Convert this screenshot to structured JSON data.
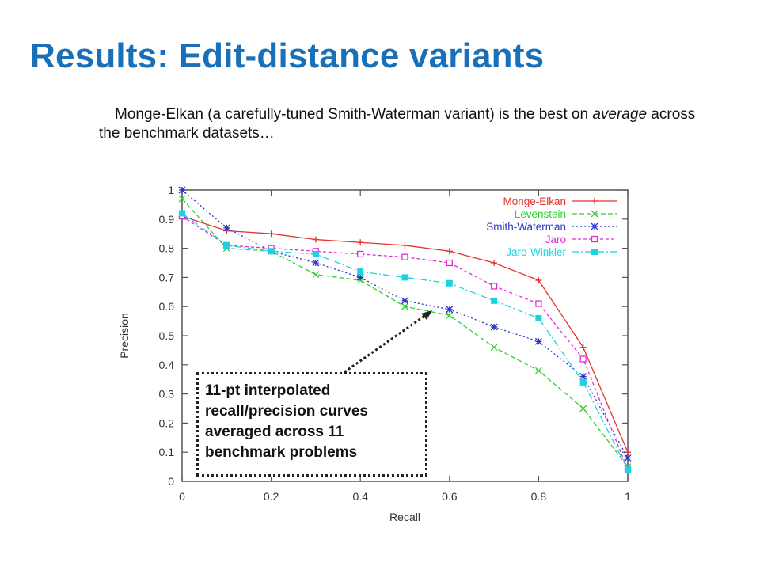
{
  "slide": {
    "title": "Results: Edit-distance variants",
    "subtitle_part1": "Monge-Elkan (a carefully-tuned Smith-Waterman variant) is the best on ",
    "subtitle_emph": "average",
    "subtitle_part2": " across the benchmark datasets…",
    "callout": "11-pt interpolated recall/precision curves averaged across 11 benchmark problems"
  },
  "chart_data": {
    "type": "line",
    "xlabel": "Recall",
    "ylabel": "Precision",
    "xlim": [
      0,
      1
    ],
    "ylim": [
      0,
      1
    ],
    "xticks": [
      "0",
      "0.2",
      "0.4",
      "0.6",
      "0.8",
      "1"
    ],
    "yticks": [
      "0",
      "0.1",
      "0.2",
      "0.3",
      "0.4",
      "0.5",
      "0.6",
      "0.7",
      "0.8",
      "0.9",
      "1"
    ],
    "legend_position": "top-right",
    "x": [
      0,
      0.1,
      0.2,
      0.3,
      0.4,
      0.5,
      0.6,
      0.7,
      0.8,
      0.9,
      1.0
    ],
    "series": [
      {
        "name": "Monge-Elkan",
        "color": "#e8322c",
        "dash": "",
        "marker": "plus",
        "values": [
          0.91,
          0.86,
          0.85,
          0.83,
          0.82,
          0.81,
          0.79,
          0.75,
          0.69,
          0.46,
          0.1
        ]
      },
      {
        "name": "Levenstein",
        "color": "#2fd12f",
        "dash": "6,3",
        "marker": "x",
        "values": [
          0.97,
          0.8,
          0.79,
          0.71,
          0.69,
          0.6,
          0.57,
          0.46,
          0.38,
          0.25,
          0.05
        ]
      },
      {
        "name": "Smith-Waterman",
        "color": "#2b35c8",
        "dash": "2,3",
        "marker": "star",
        "values": [
          1.0,
          0.87,
          0.79,
          0.75,
          0.7,
          0.62,
          0.59,
          0.53,
          0.48,
          0.36,
          0.08
        ]
      },
      {
        "name": "Jaro",
        "color": "#e22bd8",
        "dash": "4,3",
        "marker": "square-open",
        "values": [
          0.91,
          0.81,
          0.8,
          0.79,
          0.78,
          0.77,
          0.75,
          0.67,
          0.61,
          0.42,
          0.04
        ]
      },
      {
        "name": "Jaro-Winkler",
        "color": "#19d4e0",
        "dash": "8,3,2,3",
        "marker": "square-filled",
        "values": [
          0.92,
          0.81,
          0.79,
          0.78,
          0.72,
          0.7,
          0.68,
          0.62,
          0.56,
          0.34,
          0.04
        ]
      }
    ],
    "grid": false
  },
  "colors": {
    "title": "#1a70b8",
    "text": "#111111",
    "axis": "#555555"
  }
}
